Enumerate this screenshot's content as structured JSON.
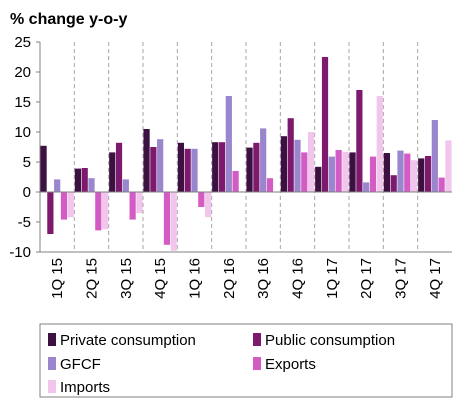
{
  "chart_data": {
    "type": "bar",
    "title": "% change y-o-y",
    "xlabel": "",
    "ylabel": "",
    "ylim": [
      -10,
      25
    ],
    "yticks": [
      -10,
      -5,
      0,
      5,
      10,
      15,
      20,
      25
    ],
    "categories": [
      "1Q 15",
      "2Q 15",
      "3Q 15",
      "4Q 15",
      "1Q 16",
      "2Q 16",
      "3Q 16",
      "4Q 16",
      "1Q 17",
      "2Q 17",
      "3Q 17",
      "4Q 17"
    ],
    "grid": "vertical-dashed",
    "legend_position": "bottom",
    "series": [
      {
        "name": "Private consumption",
        "color": "#3c1040",
        "values": [
          7.7,
          3.9,
          6.6,
          10.5,
          8.2,
          8.3,
          7.4,
          9.3,
          4.2,
          6.6,
          6.5,
          5.6
        ]
      },
      {
        "name": "Public consumption",
        "color": "#7d1a6e",
        "values": [
          -7.0,
          4.0,
          8.2,
          7.5,
          7.2,
          8.3,
          8.2,
          12.3,
          22.5,
          17.0,
          2.8,
          6.0
        ]
      },
      {
        "name": "GFCF",
        "color": "#9a86cc",
        "values": [
          2.1,
          2.3,
          2.1,
          8.8,
          7.2,
          16.0,
          10.6,
          8.7,
          5.9,
          1.6,
          6.9,
          12.0
        ]
      },
      {
        "name": "Exports",
        "color": "#d35bc4",
        "values": [
          -4.6,
          -6.4,
          -4.6,
          -8.8,
          -2.5,
          3.5,
          2.3,
          6.6,
          7.0,
          5.9,
          6.4,
          2.4
        ]
      },
      {
        "name": "Imports",
        "color": "#f2c5ec",
        "values": [
          -4.2,
          -6.2,
          -3.5,
          -9.8,
          -4.2,
          0.1,
          0.0,
          10.0,
          6.7,
          16.0,
          5.3,
          8.6
        ]
      }
    ]
  }
}
